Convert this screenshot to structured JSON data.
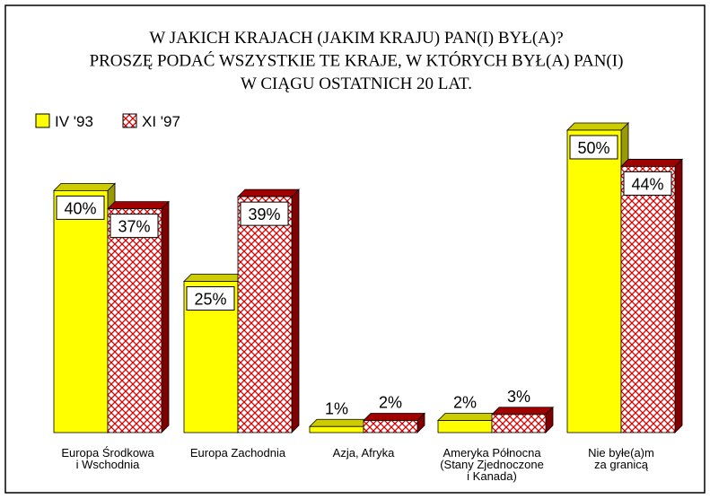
{
  "chart_data": {
    "type": "bar3d",
    "title": [
      "W JAKICH KRAJACH (JAKIM KRAJU) PAN(I) BYŁ(A)?",
      "PROSZĘ PODAĆ WSZYSTKIE TE KRAJE, W KTÓRYCH BYŁ(A) PAN(I)",
      "W CIĄGU OSTATNICH 20 LAT."
    ],
    "categories": [
      [
        "Europa Środkowa",
        "i Wschodnia"
      ],
      [
        "Europa Zachodnia"
      ],
      [
        "Azja, Afryka"
      ],
      [
        "Ameryka Północna",
        "(Stany Zjednoczone",
        "i Kanada)"
      ],
      [
        "Nie byłe(a)m",
        "za granicą"
      ]
    ],
    "series": [
      {
        "name": "IV '93",
        "color": "#ffff00",
        "values": [
          40,
          25,
          1,
          2,
          50
        ],
        "value_labels": [
          "40%",
          "25%",
          "1%",
          "2%",
          "50%"
        ]
      },
      {
        "name": "XI '97",
        "color": "#cc0000",
        "values": [
          37,
          39,
          2,
          3,
          44
        ],
        "value_labels": [
          "37%",
          "39%",
          "2%",
          "3%",
          "44%"
        ]
      }
    ],
    "legend": "top-left"
  }
}
